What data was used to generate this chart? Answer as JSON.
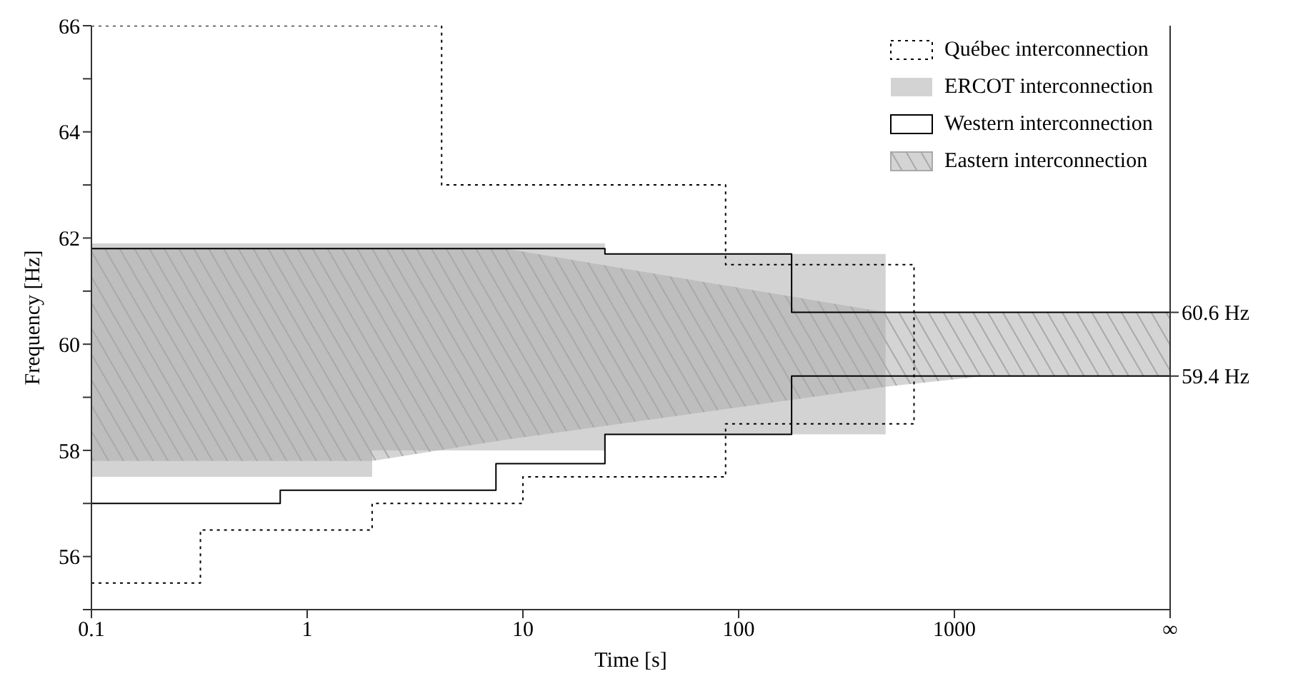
{
  "chart_data": {
    "type": "step",
    "xlabel": "Time [s]",
    "ylabel": "Frequency [Hz]",
    "log": "x",
    "xlim": [
      0.1,
      10000
    ],
    "xticks": [
      0.1,
      1,
      10,
      100,
      1000,
      {
        "value": 10000,
        "label": "∞"
      }
    ],
    "ylim": [
      55,
      66
    ],
    "yticks": [
      {
        "value": 55,
        "label": null
      },
      56,
      {
        "value": 57,
        "label": null
      },
      58,
      {
        "value": 59,
        "label": null
      },
      60,
      {
        "value": 61,
        "label": null
      },
      62,
      {
        "value": 63,
        "label": null
      },
      64,
      {
        "value": 65,
        "label": null
      },
      66
    ],
    "y2lim": [
      55,
      66
    ],
    "y2ticks": [
      {
        "value": 60.6,
        "label": "60.6 Hz"
      },
      {
        "value": 59.4,
        "label": "59.4 Hz"
      }
    ],
    "legend": "top right",
    "series": [
      {
        "name": "Québec interconnection",
        "line_style": "dotted",
        "color": "#000000",
        "x": [
          0.1,
          4.2,
          87,
          650,
          650
        ],
        "values": [
          66,
          63,
          61.5,
          61.5,
          58.5
        ]
      },
      {
        "line_style": "dotted",
        "color": "#000000",
        "x": [
          0.1,
          0.32,
          2,
          10,
          87,
          650
        ],
        "values": [
          55.5,
          56.5,
          57,
          57.5,
          58.5,
          58.5
        ]
      },
      {
        "name": "ERCOT interconnection",
        "color": "#d3d3d3",
        "x": [
          0.1,
          2,
          24,
          480
        ],
        "values": [
          null,
          null,
          null,
          null
        ],
        "lower": [
          57.5,
          58,
          58.3,
          58.3
        ],
        "upper": [
          61.9,
          61.9,
          61.7,
          61.7
        ]
      },
      {
        "name": "Western interconnection",
        "line_style": "solid",
        "color": "#000000",
        "x": [
          0.1,
          24,
          176,
          10000
        ],
        "values": [
          61.8,
          61.7,
          60.6,
          60.6
        ]
      },
      {
        "line_style": "solid",
        "color": "#000000",
        "x": [
          0.1,
          0.75,
          7.5,
          24,
          176,
          10000
        ],
        "values": [
          57,
          57.25,
          57.75,
          58.3,
          59.4,
          59.4
        ]
      },
      {
        "name": "Eastern interconnection",
        "type": "area",
        "color": "#a9a9a9",
        "x": [
          0.1,
          2,
          8.3,
          480,
          1380,
          10000
        ],
        "values": [
          null,
          null,
          null,
          null,
          null,
          null
        ],
        "lower": [
          57.8,
          57.8,
          58.2,
          59.2,
          59.4,
          59.4
        ],
        "upper": [
          61.8,
          61.8,
          61.8,
          60.6,
          60.6,
          60.6
        ]
      }
    ]
  }
}
